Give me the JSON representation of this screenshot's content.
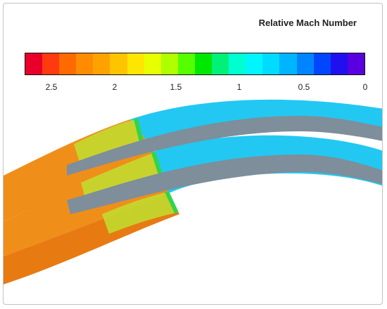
{
  "legend": {
    "title": "Relative Mach Number",
    "ticks": [
      "2.5",
      "2",
      "1.5",
      "1",
      "0.5",
      "0"
    ],
    "colors": [
      "#e8002a",
      "#ff3a10",
      "#ff6a00",
      "#ff8c00",
      "#ffa200",
      "#ffc400",
      "#ffe600",
      "#e8ff00",
      "#b0ff00",
      "#56ff00",
      "#00e800",
      "#00f078",
      "#00ffd0",
      "#00f6ff",
      "#00dcff",
      "#00b4ff",
      "#0084ff",
      "#0046ff",
      "#2010f0",
      "#5a00e0"
    ]
  },
  "field": {
    "colors": {
      "supersonic": "#f08e1a",
      "supersonic_dark": "#e87a12",
      "transonic": "#c0df30",
      "sonic": "#33d44a",
      "subsonic": "#22c8f2",
      "subsonic_light": "#4ee0ff",
      "blade": "#7e8e9a"
    }
  }
}
